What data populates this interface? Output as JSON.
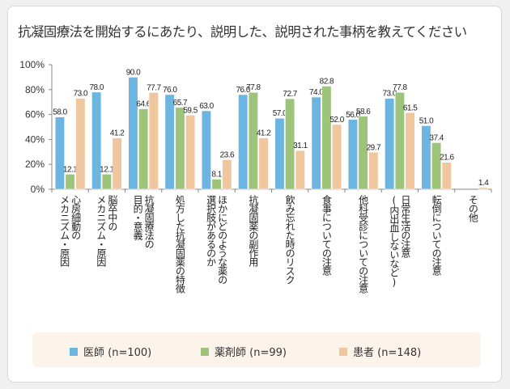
{
  "chart_data": {
    "type": "bar",
    "title": "抗凝固療法を開始するにあたり、説明した、説明された事柄を教えてください",
    "xlabel": "",
    "ylabel": "",
    "ylim": [
      0,
      100
    ],
    "yticks": [
      "0%",
      "20%",
      "40%",
      "60%",
      "80%",
      "100%"
    ],
    "ytick_values": [
      0,
      20,
      40,
      60,
      80,
      100
    ],
    "grid": false,
    "legend_position": "bottom",
    "categories": [
      "心房細動の\nメカニズム・原因",
      "脳卒中の\nメカニズム・原因",
      "抗凝固療法の\n目的・意義",
      "処方した抗凝固薬の特徴",
      "ほかにどのような薬の\n選択肢があるのか",
      "抗凝固薬の副作用",
      "飲み忘れた時のリスク",
      "食事についての注意",
      "他科受診についての注意",
      "日常生活の注意\n(内出血しないなど)",
      "転倒についての注意",
      "その他"
    ],
    "series": [
      {
        "name": "医師 (n=100)",
        "color": "#6cb5e0",
        "values": [
          58.0,
          78.0,
          90.0,
          76.0,
          63.0,
          76.0,
          57.0,
          74.0,
          56.0,
          73.0,
          51.0,
          null
        ]
      },
      {
        "name": "薬剤師 (n=99)",
        "color": "#9dc47a",
        "values": [
          12.1,
          12.1,
          64.6,
          65.7,
          8.1,
          77.8,
          72.7,
          82.8,
          58.6,
          77.8,
          37.4,
          null
        ]
      },
      {
        "name": "患者 (n=148)",
        "color": "#f0c69e",
        "values": [
          73.0,
          41.2,
          77.7,
          59.5,
          23.6,
          41.2,
          31.1,
          52.0,
          29.7,
          61.5,
          21.6,
          1.4
        ]
      }
    ]
  },
  "legend": [
    {
      "label": "医師 (n=100)",
      "color": "#6cb5e0"
    },
    {
      "label": "薬剤師 (n=99)",
      "color": "#9dc47a"
    },
    {
      "label": "患者 (n=148)",
      "color": "#f0c69e"
    }
  ]
}
